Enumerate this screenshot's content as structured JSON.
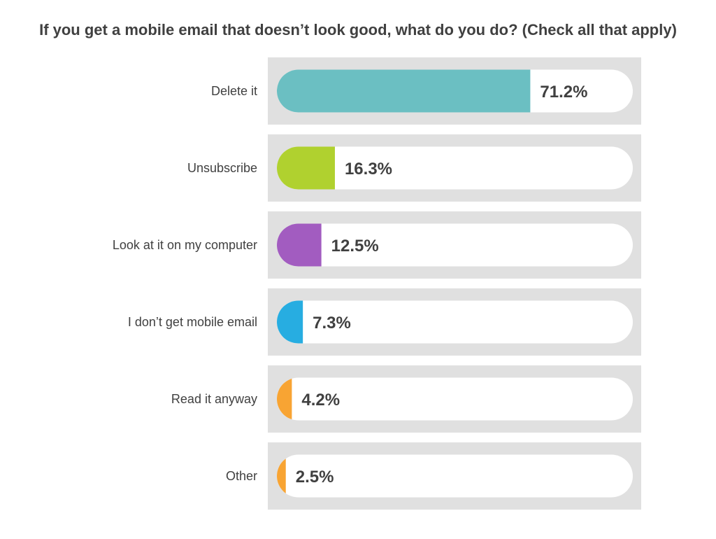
{
  "chart_data": {
    "type": "bar",
    "orientation": "horizontal",
    "title": "If you get a mobile email that doesn’t look good, what do you do? (Check all that apply)",
    "xlabel": "",
    "ylabel": "",
    "xlim": [
      0,
      100
    ],
    "grid": false,
    "categories": [
      "Delete it",
      "Unsubscribe",
      "Look at it on my computer",
      "I don’t get mobile email",
      "Read it anyway",
      "Other"
    ],
    "values": [
      71.2,
      16.3,
      12.5,
      7.3,
      4.2,
      2.5
    ],
    "value_labels": [
      "71.2%",
      "16.3%",
      "12.5%",
      "7.3%",
      "4.2%",
      "2.5%"
    ],
    "colors": [
      "#6bbfc2",
      "#b0d12f",
      "#a25cc0",
      "#27ade1",
      "#f8a433",
      "#f8a433"
    ],
    "track_color": "#ffffff",
    "panel_color": "#e0e0e0"
  }
}
